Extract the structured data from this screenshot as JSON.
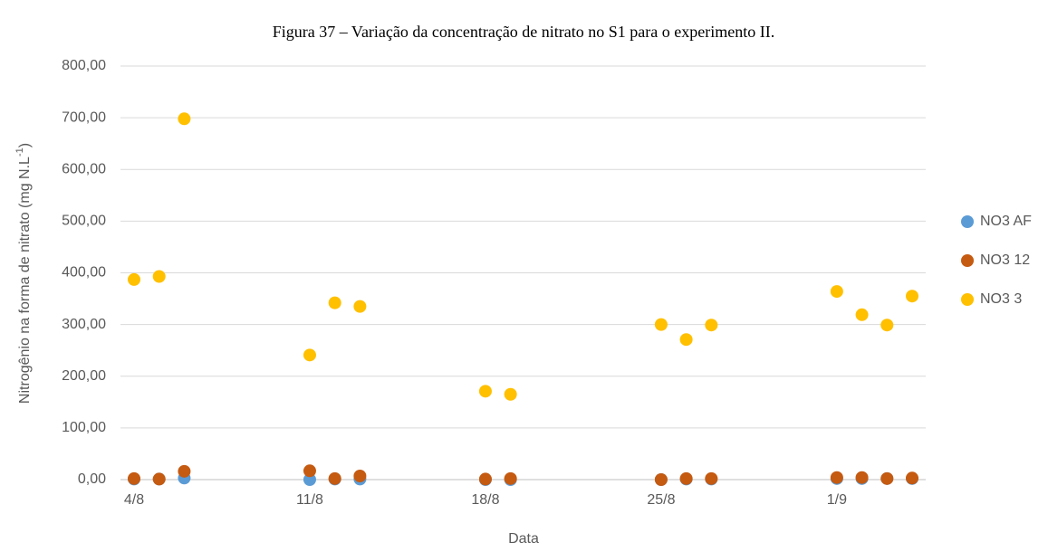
{
  "chart_data": {
    "type": "scatter",
    "title": "Figura 37 – Variação da concentração de nitrato no S1 para o experimento II.",
    "xlabel": "Data",
    "ylabel": "Nitrogênio na forma de nitrato (mg N.L",
    "ylabel_sup": "-1",
    "ylabel_end": ")",
    "x": [
      "4/8",
      "5/8",
      "6/8",
      "11/8",
      "12/8",
      "13/8",
      "18/8",
      "19/8",
      "25/8",
      "26/8",
      "27/8",
      "1/9",
      "2/9",
      "3/9",
      "4/9"
    ],
    "xlim": [
      "4/8",
      "4/9"
    ],
    "xticks": [
      "4/8",
      "11/8",
      "18/8",
      "25/8",
      "1/9"
    ],
    "ylim": [
      0,
      800
    ],
    "yticks": [
      {
        "value": 0,
        "label": "0,00"
      },
      {
        "value": 100,
        "label": "100,00"
      },
      {
        "value": 200,
        "label": "200,00"
      },
      {
        "value": 300,
        "label": "300,00"
      },
      {
        "value": 400,
        "label": "400,00"
      },
      {
        "value": 500,
        "label": "500,00"
      },
      {
        "value": 600,
        "label": "600,00"
      },
      {
        "value": 700,
        "label": "700,00"
      },
      {
        "value": 800,
        "label": "800,00"
      }
    ],
    "grid": true,
    "legend": "right",
    "series": [
      {
        "name": "NO3 AF",
        "color": "#5b9bd5",
        "values": [
          1,
          1,
          3,
          0,
          1,
          1,
          0,
          0,
          0,
          1,
          1,
          2,
          2,
          2,
          2
        ]
      },
      {
        "name": "NO3 12",
        "color": "#c55a11",
        "values": [
          2,
          1,
          16,
          17,
          2,
          7,
          1,
          2,
          0,
          2,
          2,
          4,
          4,
          2,
          3
        ]
      },
      {
        "name": "NO3 3",
        "color": "#ffc000",
        "values": [
          387,
          393,
          698,
          241,
          342,
          335,
          171,
          165,
          300,
          271,
          299,
          364,
          319,
          299,
          355
        ]
      }
    ]
  }
}
